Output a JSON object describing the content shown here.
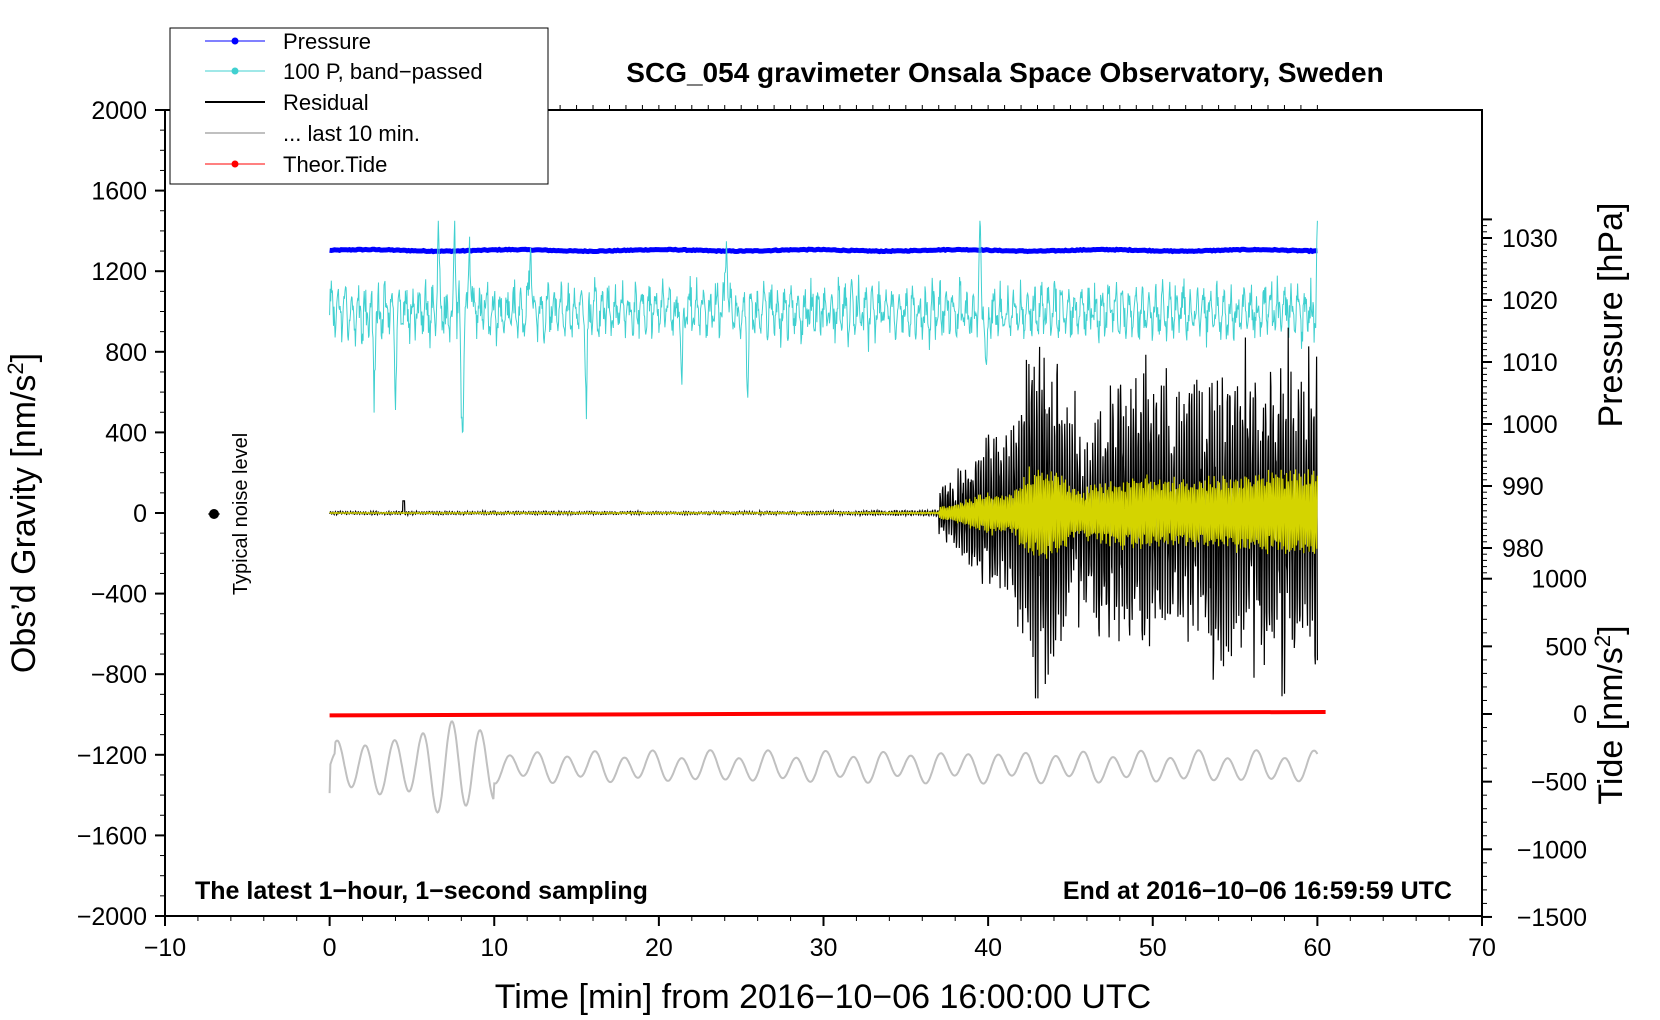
{
  "chart_data": {
    "type": "line",
    "title": "SCG_054 gravimeter Onsala Space Observatory, Sweden",
    "xlabel": "Time [min] from 2016−10−06 16:00:00 UTC",
    "ylabel_left": "Obs’d Gravity [nm/s",
    "ylabel_left_sup": "2",
    "ylabel_left_end": "]",
    "ylabel_right_pressure": "Pressure [hPa]",
    "ylabel_right_tide": "Tide [nm/s",
    "ylabel_right_tide_sup": "2",
    "ylabel_right_tide_end": "]",
    "xlim": [
      -10,
      70
    ],
    "ylim_left": [
      -2000,
      2000
    ],
    "pressure_axis_range": [
      975,
      1033
    ],
    "tide_axis_range": [
      -1500,
      1500
    ],
    "x_ticks": [
      "−10",
      "0",
      "10",
      "20",
      "30",
      "40",
      "50",
      "60",
      "70"
    ],
    "y_left_ticks": [
      "2000",
      "1600",
      "1200",
      "800",
      "400",
      "0",
      "−400",
      "−800",
      "−1200",
      "−1600",
      "−2000"
    ],
    "y_pressure_ticks": [
      "1030",
      "1020",
      "1010",
      "1000",
      "990",
      "980"
    ],
    "y_tide_ticks": [
      "1000",
      "500",
      "0",
      "−500",
      "−1000",
      "−1500"
    ],
    "legend": {
      "position": "top-left",
      "entries": [
        "Pressure",
        "100 P, band−passed",
        "Residual",
        "... last 10 min.",
        "Theor.Tide"
      ]
    },
    "note_left": "The latest 1−hour, 1−second sampling",
    "note_right": "End at 2016−10−06 16:59:59 UTC",
    "noise_label": "Typical noise level",
    "grid": false,
    "colors": {
      "pressure": "#0000ff",
      "bandpassed": "#40d0d0",
      "residual": "#000000",
      "residual_highlight": "#d4d400",
      "last10": "#c0c0c0",
      "tide": "#ff0000"
    },
    "series": [
      {
        "name": "Pressure",
        "axis": "pressure",
        "x_range": [
          0,
          60
        ],
        "level": 1028
      },
      {
        "name": "100 P, band−passed",
        "axis": "left",
        "x_range": [
          0,
          60
        ],
        "center": 1000,
        "typical_amplitude": 150,
        "max_value": 1450,
        "min_value": 340
      },
      {
        "name": "Residual",
        "axis": "left",
        "x_range": [
          0,
          60
        ],
        "center": 0,
        "peak_time": 43.3,
        "max_value": 920,
        "min_value": -920
      },
      {
        "name": "... last 10 min.",
        "axis": "left",
        "x_range": [
          0,
          60
        ],
        "center": -1260,
        "max_value": -980,
        "min_value": -1490
      },
      {
        "name": "Theor.Tide",
        "axis": "tide",
        "x_range": [
          0,
          60.5
        ],
        "start_value": -10,
        "end_value": 15
      }
    ],
    "noise_marker": {
      "x": -7,
      "y": 0
    }
  }
}
